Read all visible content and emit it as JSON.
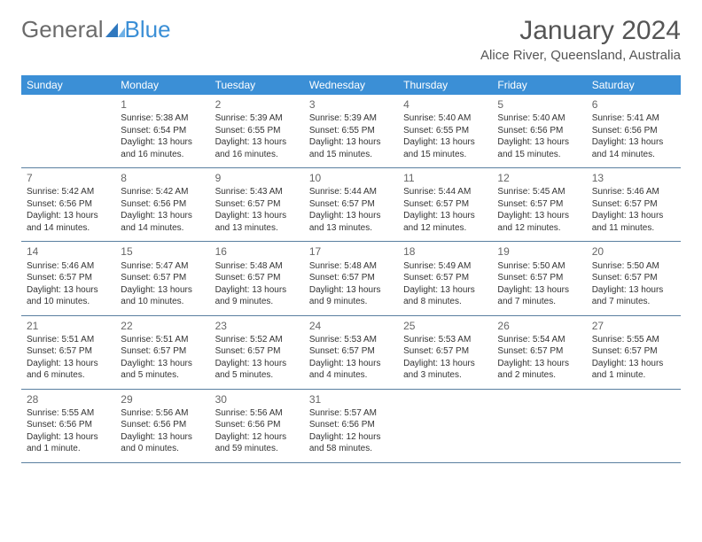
{
  "logo": {
    "word1": "General",
    "word2": "Blue"
  },
  "title": "January 2024",
  "location": "Alice River, Queensland, Australia",
  "colors": {
    "header_bg": "#3b8fd6",
    "header_text": "#ffffff",
    "row_divider": "#5a7fa0",
    "title_text": "#555555",
    "logo_gray": "#6b6b6b",
    "logo_blue": "#3b8fd6",
    "body_text": "#333333",
    "daynum_text": "#666666",
    "background": "#ffffff"
  },
  "day_headers": [
    "Sunday",
    "Monday",
    "Tuesday",
    "Wednesday",
    "Thursday",
    "Friday",
    "Saturday"
  ],
  "weeks": [
    [
      null,
      {
        "n": "1",
        "sr": "Sunrise: 5:38 AM",
        "ss": "Sunset: 6:54 PM",
        "dl": "Daylight: 13 hours and 16 minutes."
      },
      {
        "n": "2",
        "sr": "Sunrise: 5:39 AM",
        "ss": "Sunset: 6:55 PM",
        "dl": "Daylight: 13 hours and 16 minutes."
      },
      {
        "n": "3",
        "sr": "Sunrise: 5:39 AM",
        "ss": "Sunset: 6:55 PM",
        "dl": "Daylight: 13 hours and 15 minutes."
      },
      {
        "n": "4",
        "sr": "Sunrise: 5:40 AM",
        "ss": "Sunset: 6:55 PM",
        "dl": "Daylight: 13 hours and 15 minutes."
      },
      {
        "n": "5",
        "sr": "Sunrise: 5:40 AM",
        "ss": "Sunset: 6:56 PM",
        "dl": "Daylight: 13 hours and 15 minutes."
      },
      {
        "n": "6",
        "sr": "Sunrise: 5:41 AM",
        "ss": "Sunset: 6:56 PM",
        "dl": "Daylight: 13 hours and 14 minutes."
      }
    ],
    [
      {
        "n": "7",
        "sr": "Sunrise: 5:42 AM",
        "ss": "Sunset: 6:56 PM",
        "dl": "Daylight: 13 hours and 14 minutes."
      },
      {
        "n": "8",
        "sr": "Sunrise: 5:42 AM",
        "ss": "Sunset: 6:56 PM",
        "dl": "Daylight: 13 hours and 14 minutes."
      },
      {
        "n": "9",
        "sr": "Sunrise: 5:43 AM",
        "ss": "Sunset: 6:57 PM",
        "dl": "Daylight: 13 hours and 13 minutes."
      },
      {
        "n": "10",
        "sr": "Sunrise: 5:44 AM",
        "ss": "Sunset: 6:57 PM",
        "dl": "Daylight: 13 hours and 13 minutes."
      },
      {
        "n": "11",
        "sr": "Sunrise: 5:44 AM",
        "ss": "Sunset: 6:57 PM",
        "dl": "Daylight: 13 hours and 12 minutes."
      },
      {
        "n": "12",
        "sr": "Sunrise: 5:45 AM",
        "ss": "Sunset: 6:57 PM",
        "dl": "Daylight: 13 hours and 12 minutes."
      },
      {
        "n": "13",
        "sr": "Sunrise: 5:46 AM",
        "ss": "Sunset: 6:57 PM",
        "dl": "Daylight: 13 hours and 11 minutes."
      }
    ],
    [
      {
        "n": "14",
        "sr": "Sunrise: 5:46 AM",
        "ss": "Sunset: 6:57 PM",
        "dl": "Daylight: 13 hours and 10 minutes."
      },
      {
        "n": "15",
        "sr": "Sunrise: 5:47 AM",
        "ss": "Sunset: 6:57 PM",
        "dl": "Daylight: 13 hours and 10 minutes."
      },
      {
        "n": "16",
        "sr": "Sunrise: 5:48 AM",
        "ss": "Sunset: 6:57 PM",
        "dl": "Daylight: 13 hours and 9 minutes."
      },
      {
        "n": "17",
        "sr": "Sunrise: 5:48 AM",
        "ss": "Sunset: 6:57 PM",
        "dl": "Daylight: 13 hours and 9 minutes."
      },
      {
        "n": "18",
        "sr": "Sunrise: 5:49 AM",
        "ss": "Sunset: 6:57 PM",
        "dl": "Daylight: 13 hours and 8 minutes."
      },
      {
        "n": "19",
        "sr": "Sunrise: 5:50 AM",
        "ss": "Sunset: 6:57 PM",
        "dl": "Daylight: 13 hours and 7 minutes."
      },
      {
        "n": "20",
        "sr": "Sunrise: 5:50 AM",
        "ss": "Sunset: 6:57 PM",
        "dl": "Daylight: 13 hours and 7 minutes."
      }
    ],
    [
      {
        "n": "21",
        "sr": "Sunrise: 5:51 AM",
        "ss": "Sunset: 6:57 PM",
        "dl": "Daylight: 13 hours and 6 minutes."
      },
      {
        "n": "22",
        "sr": "Sunrise: 5:51 AM",
        "ss": "Sunset: 6:57 PM",
        "dl": "Daylight: 13 hours and 5 minutes."
      },
      {
        "n": "23",
        "sr": "Sunrise: 5:52 AM",
        "ss": "Sunset: 6:57 PM",
        "dl": "Daylight: 13 hours and 5 minutes."
      },
      {
        "n": "24",
        "sr": "Sunrise: 5:53 AM",
        "ss": "Sunset: 6:57 PM",
        "dl": "Daylight: 13 hours and 4 minutes."
      },
      {
        "n": "25",
        "sr": "Sunrise: 5:53 AM",
        "ss": "Sunset: 6:57 PM",
        "dl": "Daylight: 13 hours and 3 minutes."
      },
      {
        "n": "26",
        "sr": "Sunrise: 5:54 AM",
        "ss": "Sunset: 6:57 PM",
        "dl": "Daylight: 13 hours and 2 minutes."
      },
      {
        "n": "27",
        "sr": "Sunrise: 5:55 AM",
        "ss": "Sunset: 6:57 PM",
        "dl": "Daylight: 13 hours and 1 minute."
      }
    ],
    [
      {
        "n": "28",
        "sr": "Sunrise: 5:55 AM",
        "ss": "Sunset: 6:56 PM",
        "dl": "Daylight: 13 hours and 1 minute."
      },
      {
        "n": "29",
        "sr": "Sunrise: 5:56 AM",
        "ss": "Sunset: 6:56 PM",
        "dl": "Daylight: 13 hours and 0 minutes."
      },
      {
        "n": "30",
        "sr": "Sunrise: 5:56 AM",
        "ss": "Sunset: 6:56 PM",
        "dl": "Daylight: 12 hours and 59 minutes."
      },
      {
        "n": "31",
        "sr": "Sunrise: 5:57 AM",
        "ss": "Sunset: 6:56 PM",
        "dl": "Daylight: 12 hours and 58 minutes."
      },
      null,
      null,
      null
    ]
  ]
}
